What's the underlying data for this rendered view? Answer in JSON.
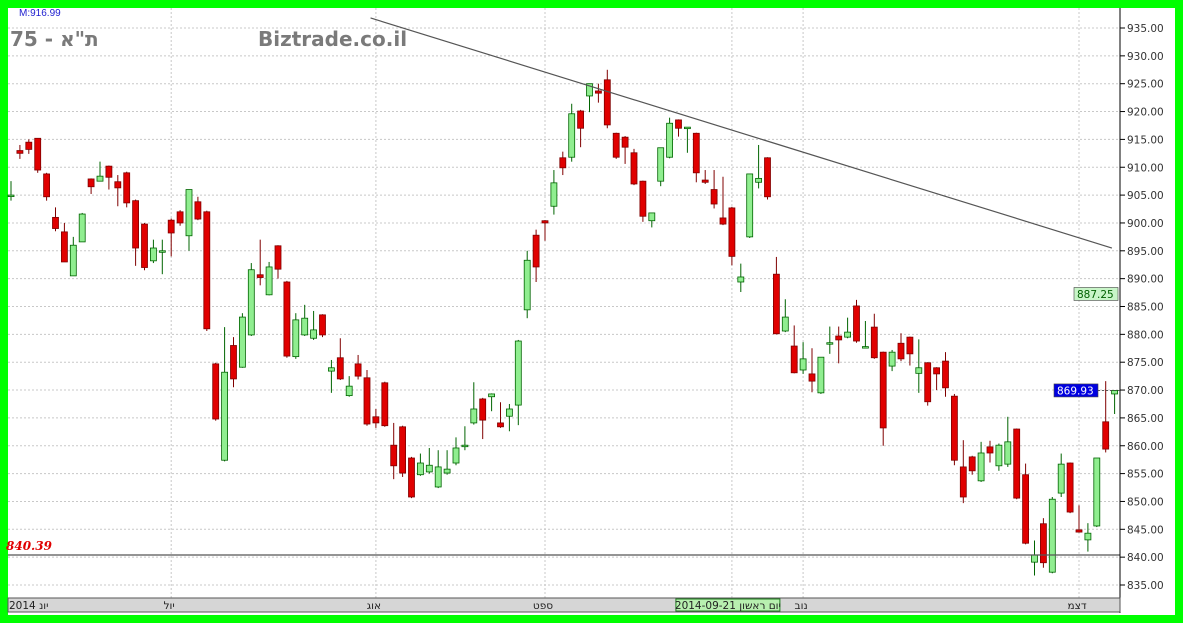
{
  "header": {
    "index_name": "ת\"א - 75",
    "site": "Biztrade.co.il",
    "max_label": "M:916.99"
  },
  "chart_data": {
    "type": "candlestick",
    "ylim": [
      832,
      938
    ],
    "yticks": [
      835,
      840,
      845,
      850,
      855,
      860,
      865,
      870,
      875,
      880,
      885,
      890,
      895,
      900,
      905,
      910,
      915,
      920,
      925,
      930,
      935
    ],
    "grid": true,
    "colors": {
      "up": "#90ee90",
      "down": "#e00000",
      "up_border": "#006400",
      "down_border": "#800000",
      "trendline": "#555555",
      "support": "#555555"
    },
    "x_labels": [
      {
        "index": 0,
        "text": "יונ 2014"
      },
      {
        "index": 18,
        "text": "יול"
      },
      {
        "index": 41,
        "text": "אוג"
      },
      {
        "index": 60,
        "text": "ספט"
      },
      {
        "index": 89,
        "text": "נוב"
      },
      {
        "index": 120,
        "text": "דצמ"
      }
    ],
    "cursor_label": {
      "index": 81,
      "text": "יום ראשון 2014-09-21"
    },
    "support_line": {
      "value": 840.39,
      "label": "840.39"
    },
    "trendline": {
      "from": [
        40.4,
        936.8
      ],
      "to": [
        123.7,
        895.5
      ]
    },
    "price_markers": [
      {
        "value": 887.25,
        "label": "887.25",
        "bg": "#c8f5c8",
        "fg": "#006000"
      },
      {
        "value": 869.93,
        "label": "869.93",
        "bg": "#0000e0",
        "fg": "#ffffff"
      }
    ],
    "ohlc": [
      [
        905,
        907.5,
        904,
        905
      ],
      [
        913,
        914,
        911.5,
        912.5
      ],
      [
        914.5,
        915,
        912.4,
        913.2
      ],
      [
        915.2,
        915.2,
        909,
        909.5
      ],
      [
        908.8,
        909,
        904,
        904.7
      ],
      [
        901,
        902.8,
        898.5,
        899
      ],
      [
        898.4,
        900,
        893,
        893
      ],
      [
        890.5,
        897.5,
        890.5,
        896
      ],
      [
        896.6,
        901.8,
        896.6,
        901.6
      ],
      [
        907.9,
        908,
        905.2,
        906.5
      ],
      [
        907.5,
        911,
        907.5,
        908.4
      ],
      [
        910.2,
        910.3,
        906,
        908.2
      ],
      [
        907.4,
        908.6,
        903,
        906.3
      ],
      [
        909,
        909.2,
        902.8,
        903.6
      ],
      [
        904,
        904.2,
        892.3,
        895.5
      ],
      [
        899.8,
        900,
        891.5,
        892
      ],
      [
        893.2,
        897,
        892.8,
        895.5
      ],
      [
        895,
        897,
        890.8,
        895
      ],
      [
        900.5,
        900.8,
        894,
        898.2
      ],
      [
        902,
        902.3,
        899.5,
        900
      ],
      [
        897.7,
        906,
        895,
        906
      ],
      [
        903.8,
        904.7,
        900.5,
        900.7
      ],
      [
        902,
        902.2,
        880.6,
        881
      ],
      [
        874.7,
        874.9,
        864.5,
        864.8
      ],
      [
        857.4,
        881.3,
        857.2,
        873.2
      ],
      [
        878,
        879.5,
        870.5,
        872
      ],
      [
        874.1,
        883.8,
        874,
        883.1
      ],
      [
        879.9,
        892.8,
        879.7,
        891.6
      ],
      [
        890.7,
        897,
        888.8,
        890.2
      ],
      [
        887.1,
        893,
        887,
        892.1
      ],
      [
        895.9,
        896,
        890,
        891.7
      ],
      [
        889.4,
        889.6,
        875.8,
        876.1
      ],
      [
        876,
        883.8,
        875.6,
        882.6
      ],
      [
        879.9,
        885.3,
        879.7,
        882.9
      ],
      [
        879.3,
        884.2,
        879,
        880.8
      ],
      [
        883.5,
        883.6,
        879.5,
        879.9
      ],
      [
        873.4,
        875.4,
        869.5,
        874
      ],
      [
        875.8,
        879.3,
        871.8,
        872
      ],
      [
        869,
        872.5,
        868.8,
        870.7
      ],
      [
        874.7,
        876.3,
        871.9,
        872.5
      ],
      [
        872.2,
        873.6,
        863.6,
        863.9
      ],
      [
        865.2,
        866.6,
        863.2,
        864.1
      ],
      [
        871.3,
        871.5,
        863.4,
        863.6
      ],
      [
        860.1,
        864.1,
        854,
        856.4
      ],
      [
        863.4,
        863.6,
        854.4,
        855.1
      ],
      [
        857.8,
        858,
        850.6,
        850.8
      ],
      [
        854.8,
        858.6,
        854.6,
        856.9
      ],
      [
        855.3,
        859.6,
        855,
        856.5
      ],
      [
        852.6,
        859.2,
        852.4,
        856.2
      ],
      [
        855.1,
        859.2,
        854.8,
        855.8
      ],
      [
        856.9,
        861.5,
        856.5,
        859.6
      ],
      [
        859.9,
        863.5,
        859.2,
        860.1
      ],
      [
        864.1,
        871.4,
        863.8,
        866.6
      ],
      [
        868.4,
        868.6,
        861.2,
        864.6
      ],
      [
        868.8,
        869.4,
        866.2,
        869.3
      ],
      [
        864.1,
        867.8,
        863.2,
        863.4
      ],
      [
        865.3,
        867.5,
        862.6,
        866.6
      ],
      [
        867.3,
        879,
        863.7,
        878.8
      ],
      [
        884.4,
        895,
        882.9,
        893.3
      ],
      [
        897.8,
        898.8,
        889.4,
        892.1
      ],
      [
        900.4,
        900.5,
        896.8,
        900
      ],
      [
        903,
        909.5,
        901.5,
        907.2
      ],
      [
        911.7,
        912.8,
        908.6,
        909.9
      ],
      [
        911.8,
        921.4,
        911,
        919.6
      ],
      [
        920.1,
        920.3,
        913.6,
        917
      ],
      [
        922.8,
        925,
        919.9,
        925
      ],
      [
        923.7,
        925,
        921.6,
        923.3
      ],
      [
        925.7,
        927.5,
        917,
        917.6
      ],
      [
        916.1,
        916.2,
        911.5,
        911.8
      ],
      [
        915.4,
        915.6,
        910.6,
        913.6
      ],
      [
        912.6,
        913.3,
        906.8,
        907
      ],
      [
        907.5,
        907.6,
        900.2,
        901.2
      ],
      [
        900.4,
        901.8,
        899.2,
        901.8
      ],
      [
        907.5,
        913.5,
        906.6,
        913.5
      ],
      [
        911.8,
        918.9,
        911.6,
        917.9
      ],
      [
        918.5,
        918.6,
        915.5,
        917
      ],
      [
        917,
        917.2,
        912.6,
        917.2
      ],
      [
        916.1,
        916.2,
        907.3,
        909
      ],
      [
        907.7,
        909.5,
        907,
        907.3
      ],
      [
        906,
        909.5,
        902.6,
        903.4
      ],
      [
        900.9,
        908.3,
        899.6,
        899.8
      ],
      [
        902.7,
        902.9,
        892.4,
        894
      ],
      [
        889.4,
        892.7,
        887.6,
        890.3
      ],
      [
        897.5,
        908.8,
        897.3,
        908.8
      ],
      [
        907.3,
        914,
        906.2,
        908
      ],
      [
        911.7,
        911.8,
        904.2,
        904.7
      ],
      [
        890.8,
        893.9,
        880,
        880.1
      ],
      [
        880.6,
        886.3,
        880.4,
        883.1
      ],
      [
        877.9,
        881.6,
        873,
        873.1
      ],
      [
        873.6,
        878.6,
        872.9,
        875.6
      ],
      [
        872.9,
        877.5,
        869.6,
        871.6
      ],
      [
        869.5,
        875.9,
        869.3,
        875.9
      ],
      [
        878.4,
        881.4,
        876.5,
        878.5
      ],
      [
        879.7,
        881.4,
        874.8,
        879
      ],
      [
        879.5,
        883,
        879.3,
        880.4
      ],
      [
        885.1,
        886.2,
        878.5,
        878.8
      ],
      [
        877.7,
        882.4,
        877.5,
        877.8
      ],
      [
        881.3,
        883.7,
        875.6,
        875.8
      ],
      [
        876.8,
        876.9,
        860,
        863.2
      ],
      [
        874.3,
        877.2,
        873.4,
        876.8
      ],
      [
        878.4,
        880.2,
        875.2,
        875.6
      ],
      [
        879.5,
        879.6,
        874.4,
        876.5
      ],
      [
        873,
        879.1,
        869.5,
        874
      ],
      [
        874.9,
        875,
        867.2,
        867.9
      ],
      [
        874,
        874.1,
        870,
        872.9
      ],
      [
        875.2,
        876.8,
        868.8,
        870.4
      ],
      [
        868.9,
        869.3,
        856.5,
        857.4
      ],
      [
        856.2,
        861,
        849.7,
        850.8
      ],
      [
        858,
        858.2,
        854.8,
        855.5
      ],
      [
        853.7,
        860.7,
        853.5,
        858.7
      ],
      [
        859.8,
        860.9,
        857,
        858.7
      ],
      [
        856.4,
        860.4,
        855.5,
        860.1
      ],
      [
        856.7,
        865.2,
        856.2,
        860.7
      ],
      [
        863,
        863.1,
        850.4,
        850.6
      ],
      [
        854.8,
        856.8,
        842.3,
        842.5
      ],
      [
        839.1,
        843,
        836.7,
        840.4
      ],
      [
        846,
        847,
        838.1,
        839
      ],
      [
        837.3,
        850.8,
        837.1,
        850.4
      ],
      [
        851.5,
        858.6,
        850.8,
        856.7
      ],
      [
        856.9,
        857,
        847.9,
        848.1
      ],
      [
        844.9,
        849.3,
        844.4,
        844.5
      ],
      [
        843.1,
        846.1,
        841,
        844.3
      ],
      [
        845.6,
        857.8,
        845.4,
        857.8
      ],
      [
        864.3,
        871.6,
        858.8,
        859.4
      ],
      [
        869.3,
        870,
        865.7,
        869.93
      ]
    ]
  }
}
